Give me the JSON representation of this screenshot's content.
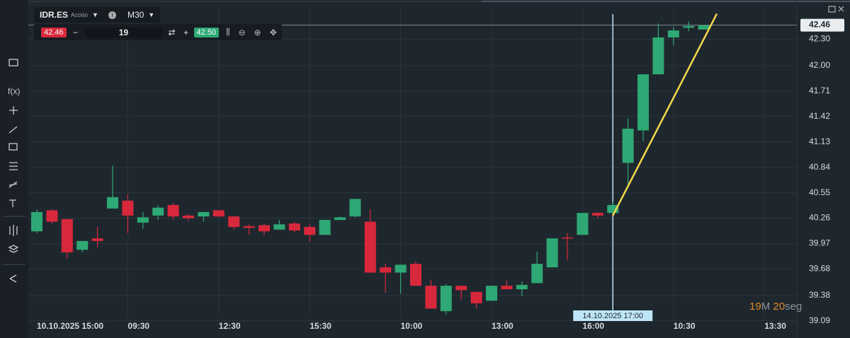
{
  "toolbar": {
    "symbol": "IDR.ES",
    "symbol_type": "Acción",
    "timeframe": "M30",
    "sell_price": "42.46",
    "volume": "19",
    "buy_price": "42.50"
  },
  "countdown": {
    "minutes": "19",
    "minutes_unit": "M",
    "seconds": "20",
    "seconds_unit": "seg"
  },
  "crosshair_label": "14.10.2025 17:00",
  "chart_data": {
    "type": "candlestick",
    "categories": [
      "10.10.2025 15:00",
      null,
      null,
      null,
      null,
      null,
      "09:30",
      null,
      null,
      null,
      null,
      null,
      "12:30",
      null,
      null,
      null,
      null,
      null,
      "15:30",
      null,
      null,
      null,
      null,
      null,
      "10:00",
      null,
      null,
      null,
      null,
      null,
      "13:00",
      null,
      null,
      null,
      null,
      null,
      "16:00",
      null,
      null,
      null,
      null,
      null,
      "10:30",
      null,
      null,
      null,
      null,
      null,
      "13:30"
    ],
    "open": [
      40.11,
      40.35,
      40.25,
      39.9,
      40.03,
      40.37,
      40.46,
      40.21,
      40.29,
      40.41,
      40.29,
      40.28,
      40.35,
      40.28,
      40.17,
      40.18,
      40.13,
      40.2,
      40.16,
      40.07,
      40.24,
      40.28,
      40.22,
      39.7,
      39.64,
      39.74,
      39.49,
      39.2,
      39.49,
      39.42,
      39.32,
      39.49,
      39.45,
      39.52,
      39.7,
      40.04,
      40.07,
      40.32,
      40.32,
      40.89,
      41.26,
      41.9,
      42.32,
      42.43,
      42.41,
      null,
      null,
      null,
      null
    ],
    "high": [
      40.36,
      40.36,
      40.25,
      40.0,
      40.16,
      40.86,
      40.53,
      40.33,
      40.41,
      40.43,
      40.31,
      40.33,
      40.35,
      40.28,
      40.19,
      40.2,
      40.24,
      40.22,
      40.19,
      40.24,
      40.28,
      40.48,
      40.36,
      39.74,
      39.73,
      39.77,
      39.56,
      39.51,
      39.49,
      39.42,
      39.49,
      39.55,
      39.54,
      39.88,
      40.03,
      40.09,
      40.32,
      40.33,
      40.45,
      41.4,
      41.9,
      42.48,
      42.44,
      42.5,
      42.46,
      null,
      null,
      null,
      null
    ],
    "low": [
      40.09,
      40.2,
      39.8,
      39.87,
      39.93,
      40.37,
      40.09,
      40.14,
      40.24,
      40.24,
      40.23,
      40.22,
      40.27,
      40.13,
      40.07,
      40.07,
      40.13,
      40.1,
      39.99,
      40.07,
      40.24,
      40.27,
      39.64,
      39.41,
      39.4,
      39.49,
      39.23,
      39.16,
      39.33,
      39.23,
      39.32,
      39.45,
      39.37,
      39.52,
      39.7,
      39.78,
      40.07,
      40.26,
      40.29,
      40.64,
      41.14,
      41.9,
      42.23,
      42.39,
      42.41,
      null,
      null,
      null,
      null
    ],
    "close": [
      40.33,
      40.22,
      39.87,
      40.0,
      40.0,
      40.5,
      40.29,
      40.27,
      40.38,
      40.28,
      40.26,
      40.33,
      40.28,
      40.16,
      40.15,
      40.11,
      40.19,
      40.12,
      40.07,
      40.24,
      40.27,
      40.48,
      39.64,
      39.64,
      39.73,
      39.49,
      39.23,
      39.49,
      39.44,
      39.29,
      39.49,
      39.45,
      39.5,
      39.74,
      40.03,
      40.03,
      40.32,
      40.29,
      40.41,
      41.28,
      41.9,
      42.32,
      42.4,
      42.45,
      42.46,
      null,
      null,
      null,
      null
    ],
    "up_color": "#2ea874",
    "down_color": "#d8283c",
    "ylim": [
      39.08,
      42.65
    ],
    "yticks": [
      {
        "value": 42.3,
        "label": "42.30"
      },
      {
        "value": 42.0,
        "label": "42.00"
      },
      41.71,
      41.42,
      41.13,
      40.84,
      40.55,
      40.26,
      39.97,
      39.68,
      39.38,
      39.09
    ],
    "last_price": 42.46,
    "trendline": {
      "color": "#f2d84a",
      "values": [
        40.29,
        42.59
      ]
    },
    "grid": true
  }
}
